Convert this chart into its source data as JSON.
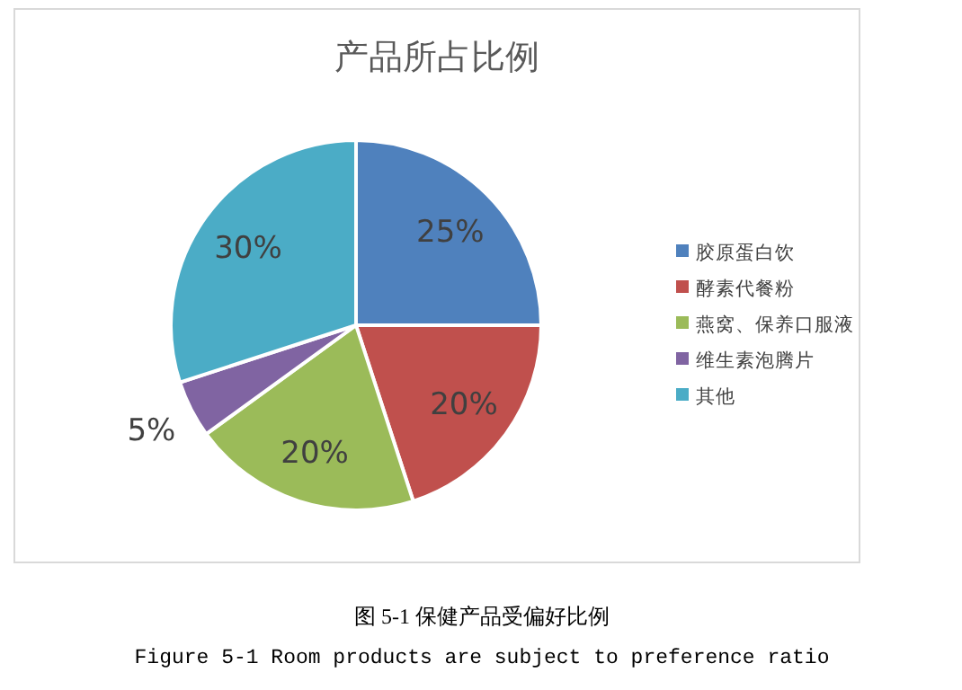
{
  "chart_data": {
    "type": "pie",
    "title": "产品所占比例",
    "categories": [
      "胶原蛋白饮",
      "酵素代餐粉",
      "燕窝、保养口服液",
      "维生素泡腾片",
      "其他"
    ],
    "values": [
      25,
      20,
      20,
      5,
      30
    ],
    "colors": [
      "#4f81bd",
      "#c0504d",
      "#9bbb59",
      "#8064a2",
      "#4bacc6"
    ],
    "value_labels": [
      "25%",
      "20%",
      "20%",
      "5%",
      "30%"
    ],
    "legend": "right",
    "annotations": [
      "图 5-1  保健产品受偏好比例",
      "Figure 5-1 Room products are subject to preference ratio"
    ]
  }
}
